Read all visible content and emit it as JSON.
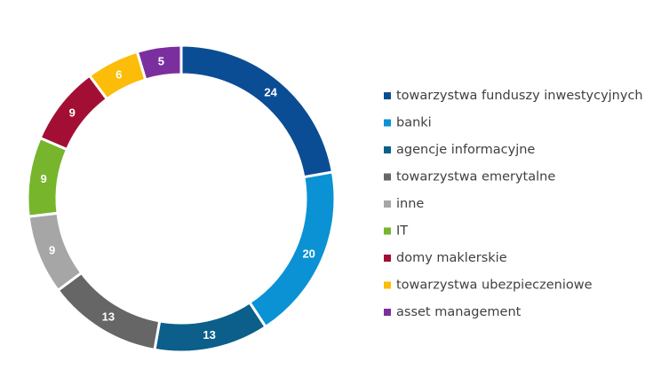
{
  "chart_data": {
    "type": "pie",
    "variant": "donut",
    "legend_position": "right",
    "categories": [
      "towarzystwa funduszy inwestycyjnych",
      "banki",
      "agencje informacyjne",
      "towarzystwa emerytalne",
      "inne",
      "IT",
      "domy maklerskie",
      "towarzystwa ubezpieczeniowe",
      "asset management"
    ],
    "values": [
      24,
      20,
      13,
      13,
      9,
      9,
      9,
      6,
      5
    ],
    "colors": [
      "#0a4d94",
      "#0a92d4",
      "#0b5f8a",
      "#666666",
      "#a6a6a6",
      "#77b52c",
      "#a30f34",
      "#fbbd0a",
      "#7b2f9e"
    ]
  }
}
